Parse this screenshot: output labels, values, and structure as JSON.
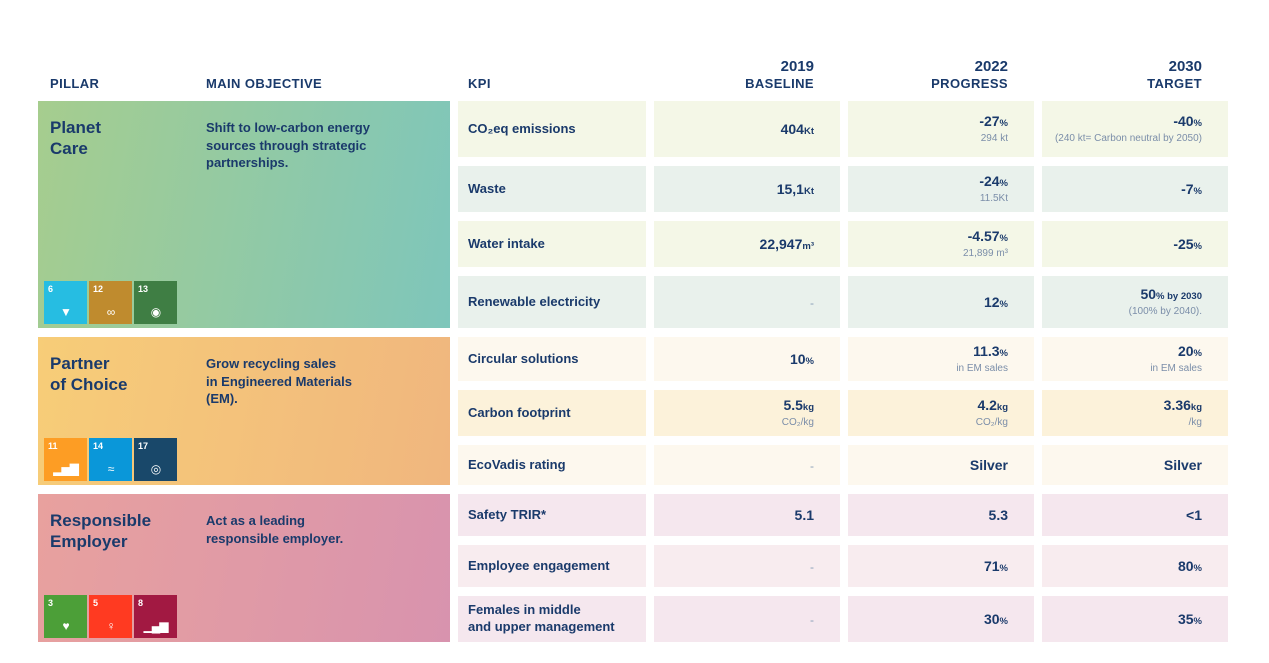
{
  "header": {
    "pillar": "PILLAR",
    "objective": "MAIN OBJECTIVE",
    "kpi": "KPI",
    "baseline": {
      "year": "2019",
      "label": "BASELINE"
    },
    "progress": {
      "year": "2022",
      "label": "PROGRESS"
    },
    "target": {
      "year": "2030",
      "label": "TARGET"
    }
  },
  "colors": {
    "text_navy": "#1a3a6b",
    "sub_gray": "#7b8ea9",
    "planet_gradient": [
      "#a6cd8e",
      "#7ec6bb"
    ],
    "partner_gradient": [
      "#f7cd78",
      "#f0b67e"
    ],
    "employer_gradient": [
      "#e8a19e",
      "#d893ae"
    ]
  },
  "pillars": [
    {
      "name": "Planet\nCare",
      "objective": "Shift to low-carbon energy\nsources through strategic\npartnerships.",
      "icons": [
        {
          "name": "sdg-6-clean-water-icon",
          "number": "6",
          "glyph": "▼",
          "color": "#26BDE2"
        },
        {
          "name": "sdg-12-responsible-consumption-icon",
          "number": "12",
          "glyph": "∞",
          "color": "#BF8B2E"
        },
        {
          "name": "sdg-13-climate-action-icon",
          "number": "13",
          "glyph": "◉",
          "color": "#3F7E44"
        }
      ],
      "rows": [
        {
          "kpi": "CO₂eq emissions",
          "baseline": {
            "value": "404",
            "unit": "Kt",
            "sub": ""
          },
          "progress": {
            "value": "-27",
            "unit": "%",
            "sub": "294 kt"
          },
          "target": {
            "value": "-40",
            "unit": "%",
            "sub": "(240 kt= Carbon neutral by 2050)"
          }
        },
        {
          "kpi": "Waste",
          "baseline": {
            "value": "15,1",
            "unit": "Kt",
            "sub": ""
          },
          "progress": {
            "value": "-24",
            "unit": "%",
            "sub": "11.5Kt"
          },
          "target": {
            "value": "-7",
            "unit": "%",
            "sub": ""
          }
        },
        {
          "kpi": "Water intake",
          "baseline": {
            "value": "22,947",
            "unit": "m³",
            "sub": ""
          },
          "progress": {
            "value": "-4.57",
            "unit": "%",
            "sub": "21,899 m³"
          },
          "target": {
            "value": "-25",
            "unit": "%",
            "sub": ""
          }
        },
        {
          "kpi": "Renewable electricity",
          "baseline": {
            "value": "-",
            "unit": "",
            "sub": ""
          },
          "progress": {
            "value": "12",
            "unit": "%",
            "sub": ""
          },
          "target": {
            "value": "50",
            "unit": "% by 2030",
            "sub": "(100% by 2040)."
          }
        }
      ]
    },
    {
      "name": "Partner\nof Choice",
      "objective": "Grow recycling sales\nin Engineered Materials\n(EM).",
      "icons": [
        {
          "name": "sdg-11-sustainable-cities-icon",
          "number": "11",
          "glyph": "▂▅▇",
          "color": "#FD9D24"
        },
        {
          "name": "sdg-14-life-below-water-icon",
          "number": "14",
          "glyph": "≈",
          "color": "#0A97D9"
        },
        {
          "name": "sdg-17-partnerships-icon",
          "number": "17",
          "glyph": "◎",
          "color": "#19486A"
        }
      ],
      "rows": [
        {
          "kpi": "Circular solutions",
          "baseline": {
            "value": "10",
            "unit": "%",
            "sub": ""
          },
          "progress": {
            "value": "11.3",
            "unit": "%",
            "sub": "in EM sales"
          },
          "target": {
            "value": "20",
            "unit": "%",
            "sub": "in EM sales"
          }
        },
        {
          "kpi": "Carbon footprint",
          "baseline": {
            "value": "5.5",
            "unit": "kg",
            "sub": "CO₂/kg"
          },
          "progress": {
            "value": "4.2",
            "unit": "kg",
            "sub": "CO₂/kg"
          },
          "target": {
            "value": "3.36",
            "unit": "kg",
            "sub": "/kg"
          }
        },
        {
          "kpi": "EcoVadis rating",
          "baseline": {
            "value": "-",
            "unit": "",
            "sub": ""
          },
          "progress": {
            "value": "Silver",
            "unit": "",
            "sub": ""
          },
          "target": {
            "value": "Silver",
            "unit": "",
            "sub": ""
          }
        }
      ]
    },
    {
      "name": "Responsible\nEmployer",
      "objective": "Act as a leading\nresponsible employer.",
      "icons": [
        {
          "name": "sdg-3-good-health-icon",
          "number": "3",
          "glyph": "♥",
          "color": "#4C9F38"
        },
        {
          "name": "sdg-5-gender-equality-icon",
          "number": "5",
          "glyph": "♀",
          "color": "#FF3A21"
        },
        {
          "name": "sdg-8-decent-work-icon",
          "number": "8",
          "glyph": "▁▄▆",
          "color": "#A21942"
        }
      ],
      "rows": [
        {
          "kpi": "Safety TRIR*",
          "baseline": {
            "value": "5.1",
            "unit": "",
            "sub": ""
          },
          "progress": {
            "value": "5.3",
            "unit": "",
            "sub": ""
          },
          "target": {
            "value": "<1",
            "unit": "",
            "sub": ""
          }
        },
        {
          "kpi": "Employee engagement",
          "baseline": {
            "value": "-",
            "unit": "",
            "sub": ""
          },
          "progress": {
            "value": "71",
            "unit": "%",
            "sub": ""
          },
          "target": {
            "value": "80",
            "unit": "%",
            "sub": ""
          }
        },
        {
          "kpi": "Females in middle\nand upper management",
          "baseline": {
            "value": "-",
            "unit": "",
            "sub": ""
          },
          "progress": {
            "value": "30",
            "unit": "%",
            "sub": ""
          },
          "target": {
            "value": "35",
            "unit": "%",
            "sub": ""
          }
        }
      ]
    }
  ]
}
